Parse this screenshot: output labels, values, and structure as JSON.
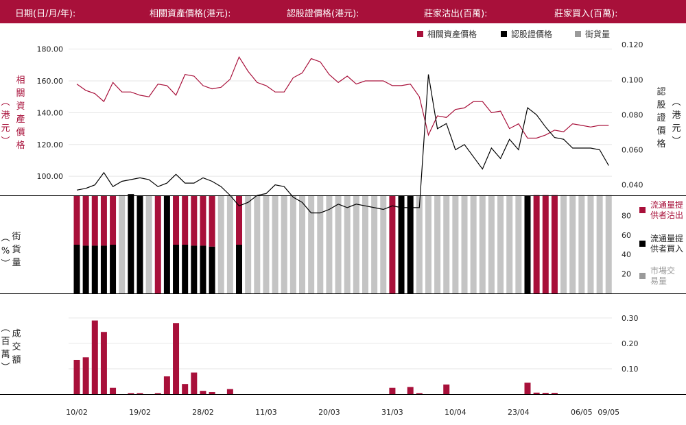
{
  "header": {
    "date_label": "日期(日/月/年):",
    "underlying_label": "相關資產價格(港元):",
    "warrant_label": "認股證價格(港元):",
    "mm_sell_label": "莊家沽出(百萬):",
    "mm_buy_label": "莊家買入(百萬):"
  },
  "legend_top": [
    {
      "label": "相關資產價格",
      "color": "#a8103a"
    },
    {
      "label": "認股證價格",
      "color": "#000000"
    },
    {
      "label": "街貨量",
      "color": "#9a9a9a"
    }
  ],
  "axis_labels": {
    "left_price": [
      "相",
      "關",
      "資",
      "產",
      "價",
      "格"
    ],
    "left_price_unit": [
      "港",
      "元"
    ],
    "right_price": [
      "認",
      "股",
      "證",
      "價",
      "格"
    ],
    "right_price_unit": [
      "港",
      "元"
    ],
    "pct": [
      "街",
      "貨",
      "量"
    ],
    "pct_unit": [
      "%"
    ],
    "vol": [
      "成",
      "交",
      "額"
    ],
    "vol_unit": [
      "百",
      "萬"
    ]
  },
  "side_legend": [
    {
      "label": "流通量提供者沽出",
      "color": "#a8103a"
    },
    {
      "label": "流通量提供者買入",
      "color": "#000000"
    },
    {
      "label": "市場交易量",
      "color": "#9a9a9a"
    }
  ],
  "chart_data": {
    "type": "line",
    "x_tick_labels": [
      "10/02",
      "19/02",
      "28/02",
      "11/03",
      "20/03",
      "31/03",
      "10/04",
      "23/04",
      "06/05",
      "09/05"
    ],
    "x_tick_index": [
      0,
      7,
      14,
      21,
      28,
      35,
      42,
      49,
      56,
      59
    ],
    "price_panel": {
      "left_axis": {
        "ticks": [
          "100.00",
          "120.00",
          "140.00",
          "160.00",
          "180.00"
        ],
        "range": [
          88,
          185
        ]
      },
      "right_axis": {
        "ticks": [
          "0.040",
          "0.060",
          "0.080",
          "0.100",
          "0.120"
        ],
        "range": [
          0.034,
          0.122
        ]
      },
      "series": [
        {
          "name": "相關資產價格",
          "axis": "left",
          "color": "#a8103a",
          "values": [
            158,
            154,
            152,
            147,
            159,
            153,
            153,
            151,
            150,
            158,
            157,
            151,
            164,
            163,
            157,
            155,
            156,
            161,
            175,
            166,
            159,
            157,
            153,
            153,
            162,
            165,
            174,
            172,
            164,
            159,
            163,
            158,
            160,
            160,
            160,
            157,
            157,
            158,
            150,
            126,
            138,
            137,
            142,
            143,
            147,
            147,
            140,
            141,
            130,
            133,
            124,
            124,
            126,
            129,
            128,
            133,
            132,
            131,
            132,
            132
          ]
        },
        {
          "name": "認股證價格",
          "axis": "right",
          "color": "#000000",
          "values": [
            0.037,
            0.038,
            0.04,
            0.047,
            0.039,
            0.042,
            0.043,
            0.044,
            0.043,
            0.039,
            0.041,
            0.046,
            0.041,
            0.041,
            0.044,
            0.042,
            0.039,
            0.034,
            0.028,
            0.03,
            0.034,
            0.035,
            0.04,
            0.039,
            0.033,
            0.03,
            0.024,
            0.024,
            0.026,
            0.029,
            0.027,
            0.029,
            0.028,
            0.027,
            0.026,
            0.028,
            0.027,
            0.027,
            0.027,
            0.103,
            0.072,
            0.075,
            0.06,
            0.063,
            0.056,
            0.049,
            0.061,
            0.055,
            0.066,
            0.06,
            0.084,
            0.08,
            0.073,
            0.067,
            0.066,
            0.061,
            0.061,
            0.061,
            0.06,
            0.051
          ]
        }
      ]
    },
    "outstanding_panel": {
      "y_ticks": [
        "20",
        "40",
        "60",
        "80"
      ],
      "y_range": [
        0,
        100
      ],
      "bar_top": 100,
      "outstanding_pct": [
        100,
        100,
        100,
        100,
        100,
        101,
        102,
        100,
        100,
        100,
        100,
        100,
        100,
        100,
        100,
        100,
        100,
        100,
        100,
        100,
        100,
        100,
        100,
        100,
        100,
        100,
        100,
        100,
        100,
        100,
        100,
        100,
        100,
        100,
        100,
        100,
        100,
        100,
        100,
        100,
        100,
        100,
        100,
        100,
        100,
        100,
        100,
        100,
        100,
        100,
        100,
        101,
        101,
        101,
        101,
        101,
        101,
        101,
        101,
        101
      ],
      "category": [
        "sell",
        "sell",
        "sell",
        "sell",
        "sell",
        "market",
        "buy",
        "buy",
        "market",
        "sell",
        "buy",
        "sell",
        "sell",
        "sell",
        "sell",
        "sell",
        "market",
        "market",
        "sell",
        "market",
        "market",
        "market",
        "market",
        "market",
        "market",
        "market",
        "market",
        "market",
        "market",
        "market",
        "market",
        "market",
        "market",
        "market",
        "market",
        "sell",
        "buy",
        "buy",
        "market",
        "market",
        "market",
        "market",
        "market",
        "market",
        "market",
        "market",
        "market",
        "market",
        "market",
        "market",
        "buy",
        "sell",
        "sell",
        "sell",
        "market",
        "market",
        "market",
        "market",
        "market",
        "market"
      ],
      "split_pct": [
        50,
        49,
        49,
        49,
        50,
        null,
        null,
        null,
        null,
        null,
        null,
        50,
        50,
        49,
        49,
        48,
        null,
        null,
        50,
        null,
        null,
        null,
        null,
        null,
        null,
        null,
        null,
        null,
        null,
        null,
        null,
        null,
        null,
        null,
        null,
        null,
        null,
        null,
        null,
        null,
        null,
        null,
        null,
        null,
        null,
        null,
        null,
        null,
        null,
        null,
        null,
        null,
        null,
        null,
        null,
        null,
        null,
        null,
        null,
        null
      ]
    },
    "volume_panel": {
      "y_ticks": [
        "0.10",
        "0.20",
        "0.30"
      ],
      "y_range": [
        0,
        0.305
      ],
      "values": [
        0.135,
        0.145,
        0.29,
        0.245,
        0.025,
        0,
        0.004,
        0.004,
        0,
        0.004,
        0.07,
        0.28,
        0.04,
        0.085,
        0.013,
        0.008,
        0,
        0.02,
        0,
        0,
        0,
        0,
        0,
        0,
        0,
        0,
        0,
        0,
        0,
        0,
        0,
        0,
        0,
        0,
        0,
        0.025,
        0,
        0.028,
        0.004,
        0,
        0,
        0.038,
        0,
        0,
        0,
        0,
        0,
        0,
        0,
        0,
        0.045,
        0.006,
        0.005,
        0.005,
        0,
        0,
        0,
        0,
        0,
        0
      ]
    }
  }
}
